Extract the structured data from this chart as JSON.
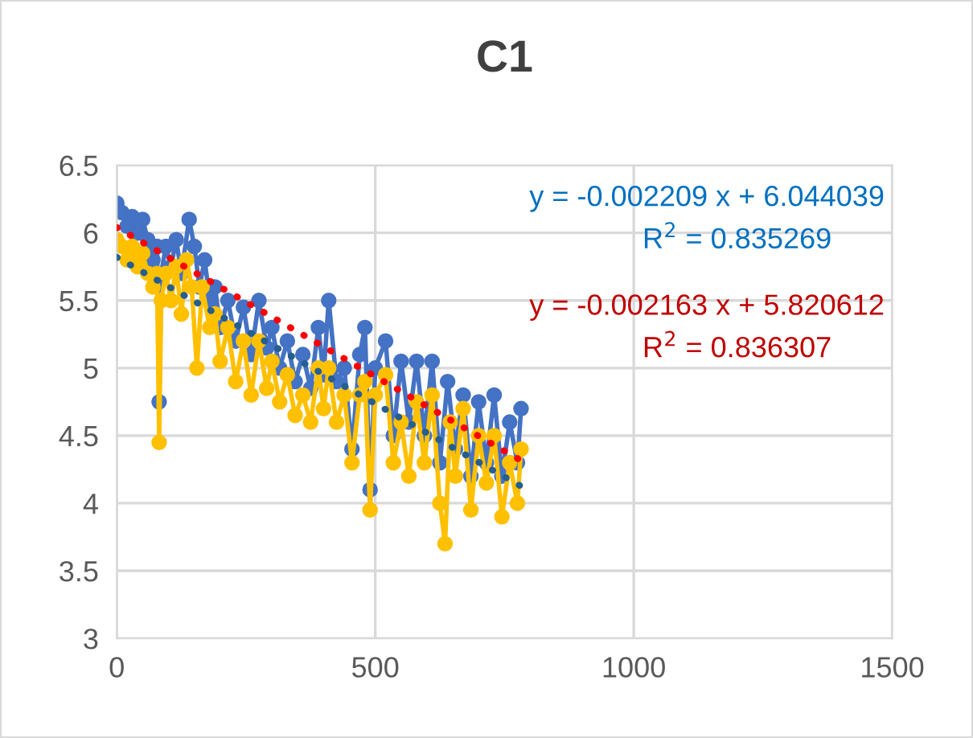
{
  "chart_data": {
    "type": "line",
    "title": "C1",
    "xlim": [
      0,
      1500
    ],
    "xticks": [
      0,
      500,
      1000,
      1500
    ],
    "ylim": [
      3,
      6.5
    ],
    "yticks": [
      3,
      3.5,
      4,
      4.5,
      5,
      5.5,
      6,
      6.5
    ],
    "grid": true,
    "marker": "circle",
    "line_style": "solid",
    "series": [
      {
        "color": "#4472c4",
        "x": [
          0,
          10,
          20,
          30,
          40,
          50,
          60,
          70,
          78,
          82,
          86,
          95,
          105,
          115,
          125,
          140,
          150,
          160,
          170,
          180,
          190,
          200,
          215,
          230,
          245,
          260,
          275,
          290,
          300,
          315,
          330,
          345,
          360,
          375,
          390,
          400,
          410,
          425,
          440,
          455,
          470,
          480,
          490,
          500,
          520,
          535,
          550,
          565,
          580,
          595,
          610,
          625,
          640,
          655,
          670,
          685,
          700,
          715,
          730,
          745,
          760,
          775,
          782
        ],
        "values": [
          6.22,
          6.15,
          6.05,
          6.12,
          6.0,
          6.1,
          5.95,
          5.8,
          5.9,
          4.75,
          5.7,
          5.9,
          5.75,
          5.95,
          5.7,
          6.1,
          5.9,
          5.6,
          5.8,
          5.5,
          5.6,
          5.3,
          5.5,
          5.2,
          5.45,
          5.1,
          5.5,
          5.15,
          5.3,
          5.0,
          5.2,
          4.9,
          5.1,
          4.85,
          5.3,
          4.95,
          5.5,
          4.9,
          5.0,
          4.4,
          5.1,
          5.3,
          4.1,
          5.0,
          5.2,
          4.5,
          5.05,
          4.6,
          5.05,
          4.5,
          5.05,
          4.3,
          4.9,
          4.4,
          4.8,
          4.2,
          4.75,
          4.3,
          4.8,
          4.2,
          4.6,
          4.3,
          4.7
        ]
      },
      {
        "color": "#ffc000",
        "x": [
          0,
          10,
          20,
          30,
          40,
          50,
          60,
          70,
          78,
          82,
          86,
          95,
          105,
          115,
          125,
          135,
          145,
          155,
          165,
          180,
          190,
          200,
          215,
          230,
          245,
          260,
          275,
          290,
          300,
          315,
          330,
          345,
          360,
          375,
          390,
          400,
          410,
          425,
          440,
          455,
          470,
          480,
          490,
          500,
          520,
          535,
          550,
          565,
          580,
          595,
          610,
          625,
          635,
          645,
          655,
          670,
          685,
          700,
          715,
          730,
          745,
          760,
          775,
          782
        ],
        "values": [
          5.95,
          5.9,
          5.8,
          5.9,
          5.75,
          5.85,
          5.7,
          5.6,
          5.7,
          4.45,
          5.5,
          5.7,
          5.5,
          5.75,
          5.4,
          5.8,
          5.6,
          5.0,
          5.6,
          5.3,
          5.4,
          5.05,
          5.3,
          4.9,
          5.2,
          4.8,
          5.2,
          4.85,
          5.05,
          4.75,
          4.95,
          4.65,
          4.8,
          4.6,
          5.0,
          4.7,
          5.0,
          4.6,
          4.8,
          4.3,
          4.8,
          4.9,
          3.95,
          4.8,
          4.95,
          4.3,
          4.6,
          4.2,
          4.75,
          4.3,
          4.8,
          4.0,
          3.7,
          4.6,
          4.2,
          4.7,
          3.95,
          4.5,
          4.15,
          4.5,
          3.9,
          4.3,
          4.0,
          4.4
        ]
      },
      {
        "color": "#ff0000",
        "x": [
          0,
          780
        ],
        "values": [
          6.04,
          4.32
        ],
        "marker": "none",
        "line_style": "dotted"
      },
      {
        "color": "#255e91",
        "x": [
          0,
          780
        ],
        "values": [
          5.82,
          4.13
        ],
        "marker": "none",
        "line_style": "dotted"
      }
    ],
    "annotations": [
      "y = -0.002209 x + 6.044039",
      "R$^{2}$ = 0.835269",
      "y = -0.002163 x + 5.820612",
      "R$^{2}$ = 0.836307"
    ]
  }
}
